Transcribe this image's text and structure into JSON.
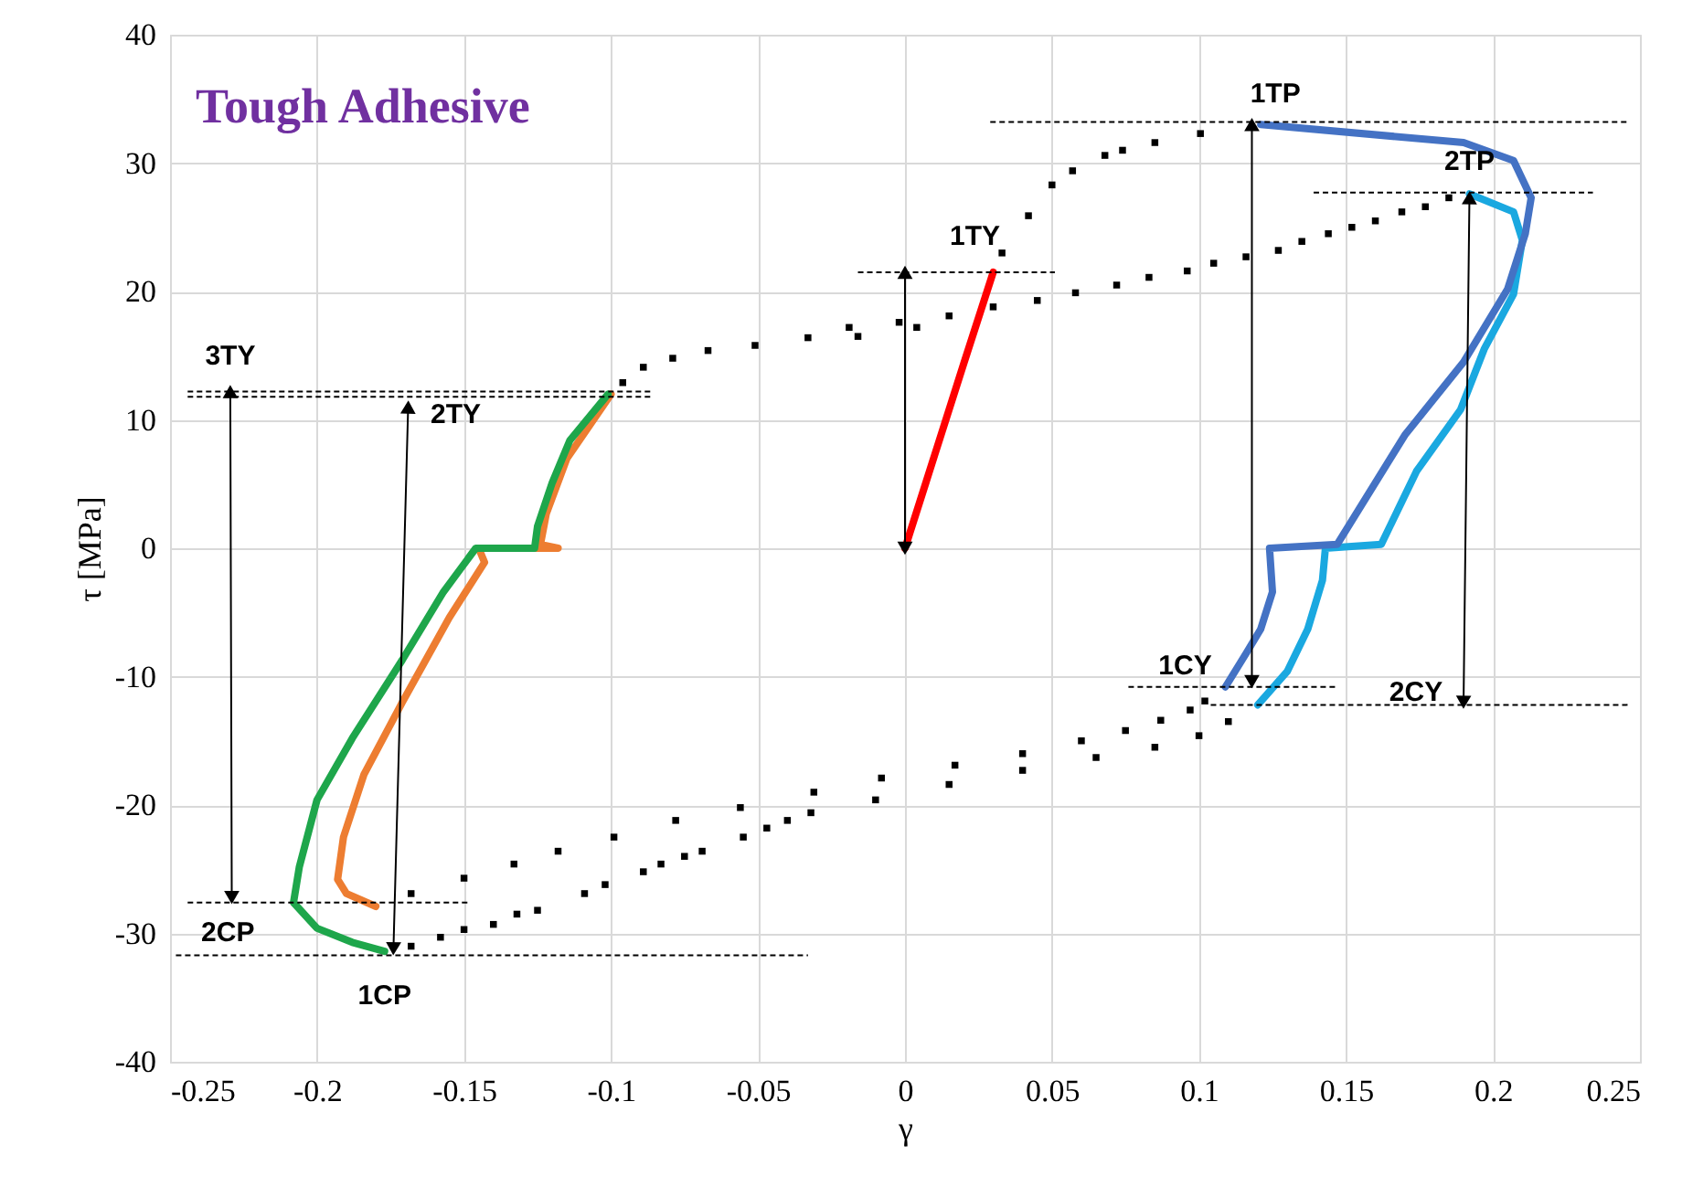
{
  "chart_data": {
    "type": "line",
    "title": "Tough Adhesive",
    "xlabel": "γ",
    "ylabel": "τ [MPa]",
    "xlim": [
      -0.25,
      0.25
    ],
    "xticks": [
      -0.25,
      -0.2,
      -0.15,
      -0.1,
      -0.05,
      0,
      0.05,
      0.1,
      0.15,
      0.2,
      0.25
    ],
    "ylim": [
      -40,
      40
    ],
    "yticks": [
      -40,
      -30,
      -20,
      -10,
      0,
      10,
      20,
      30,
      40
    ],
    "grid": true,
    "series": [
      {
        "type": "scatter",
        "marker": "square",
        "color": "#000000",
        "x": [
          0.033,
          0.042,
          0.05,
          0.057,
          0.068,
          0.074,
          0.085,
          0.1005
        ],
        "values": [
          23,
          25.9,
          28.3,
          29.4,
          30.6,
          31.0,
          31.6,
          32.3
        ]
      },
      {
        "type": "scatter",
        "marker": "square",
        "color": "#000000",
        "x": [
          0.185,
          0.177,
          0.169,
          0.16,
          0.152,
          0.144,
          0.135,
          0.127,
          0.116,
          0.105,
          0.096,
          0.083,
          0.072,
          0.058,
          0.045,
          0.03,
          0.015,
          0.004,
          -0.002,
          -0.016,
          -0.019,
          -0.033,
          -0.051,
          -0.067,
          -0.079,
          -0.089,
          -0.096
        ],
        "values": [
          27.3,
          26.6,
          26.2,
          25.5,
          25.0,
          24.5,
          23.9,
          23.2,
          22.7,
          22.2,
          21.6,
          21.1,
          20.5,
          19.9,
          19.3,
          18.8,
          18.1,
          17.2,
          17.6,
          16.5,
          17.2,
          16.4,
          15.8,
          15.4,
          14.8,
          14.1,
          12.9
        ]
      },
      {
        "type": "scatter",
        "marker": "square",
        "color": "#000000",
        "x": [
          -0.168,
          -0.15,
          -0.133,
          -0.118,
          -0.099,
          -0.078,
          -0.056,
          -0.031,
          -0.008,
          0.017,
          0.04,
          0.06,
          0.075,
          0.087,
          0.097,
          0.102
        ],
        "values": [
          -26.9,
          -25.7,
          -24.6,
          -23.6,
          -22.5,
          -21.2,
          -20.2,
          -19.0,
          -17.9,
          -16.9,
          -16.0,
          -15.0,
          -14.2,
          -13.4,
          -12.6,
          -11.9
        ]
      },
      {
        "type": "scatter",
        "marker": "square",
        "color": "#000000",
        "x": [
          -0.168,
          -0.158,
          -0.15,
          -0.14,
          -0.132,
          -0.125,
          -0.109,
          -0.102,
          -0.089,
          -0.083,
          -0.075,
          -0.069,
          -0.055,
          -0.047,
          -0.04,
          -0.032,
          -0.01,
          0.015,
          0.04,
          0.065,
          0.085,
          0.1,
          0.11
        ],
        "values": [
          -31.0,
          -30.3,
          -29.7,
          -29.3,
          -28.5,
          -28.2,
          -26.9,
          -26.2,
          -25.2,
          -24.6,
          -24.0,
          -23.6,
          -22.5,
          -21.8,
          -21.2,
          -20.6,
          -19.6,
          -18.4,
          -17.3,
          -16.3,
          -15.5,
          -14.6,
          -13.5
        ]
      },
      {
        "color": "#ff0000",
        "x": [
          0,
          0.01,
          0.02,
          0.03
        ],
        "values": [
          0,
          7.2,
          14.4,
          21.5
        ]
      },
      {
        "color": "#1aa8e0",
        "x": [
          0.192,
          0.207,
          0.21,
          0.207,
          0.197,
          0.189,
          0.174,
          0.162,
          0.143,
          0.142,
          0.137,
          0.13,
          0.12
        ],
        "values": [
          27.6,
          26.2,
          24.0,
          19.8,
          15.5,
          10.8,
          6.0,
          0.3,
          0,
          -2.5,
          -6.3,
          -9.6,
          -12.2
        ]
      },
      {
        "color": "#4472c4",
        "x": [
          0.121,
          0.19,
          0.207,
          0.213,
          0.211,
          0.205,
          0.19,
          0.17,
          0.147,
          0.124,
          0.125,
          0.121,
          0.116,
          0.109
        ],
        "values": [
          33.0,
          31.6,
          30.2,
          27.3,
          24.5,
          20.2,
          14.5,
          8.8,
          0.3,
          0,
          -3.4,
          -6.3,
          -8.2,
          -10.8
        ]
      },
      {
        "color": "#ed7d31",
        "x": [
          -0.1,
          -0.115,
          -0.122,
          -0.124,
          -0.118,
          -0.145,
          -0.143,
          -0.155,
          -0.171,
          -0.184,
          -0.191,
          -0.193,
          -0.19,
          -0.18
        ],
        "values": [
          12.0,
          7.0,
          2.7,
          0.3,
          0,
          0,
          -1.1,
          -5.4,
          -12.0,
          -17.6,
          -22.5,
          -25.8,
          -26.9,
          -27.9
        ]
      },
      {
        "color": "#1ea64b",
        "x": [
          -0.101,
          -0.114,
          -0.12,
          -0.125,
          -0.126,
          -0.146,
          -0.157,
          -0.171,
          -0.188,
          -0.2,
          -0.206,
          -0.208,
          -0.2,
          -0.188,
          -0.177
        ],
        "values": [
          12.0,
          8.4,
          5.1,
          1.7,
          0,
          0,
          -3.4,
          -8.7,
          -14.8,
          -19.6,
          -24.8,
          -27.6,
          -29.6,
          -30.7,
          -31.4
        ]
      },
      {
        "type": "line",
        "line_style": "dashed",
        "color": "#000000",
        "x": [
          0.029,
          0.246
        ],
        "values": [
          33.2,
          33.2
        ]
      },
      {
        "type": "line",
        "line_style": "dashed",
        "color": "#000000",
        "x": [
          0.139,
          0.234
        ],
        "values": [
          27.7,
          27.7
        ]
      },
      {
        "type": "line",
        "line_style": "dashed",
        "color": "#000000",
        "x": [
          -0.016,
          0.051
        ],
        "values": [
          21.5,
          21.5
        ]
      },
      {
        "type": "line",
        "line_style": "dashed",
        "color": "#000000",
        "x": [
          -0.244,
          -0.086
        ],
        "values": [
          12.2,
          12.2
        ]
      },
      {
        "type": "line",
        "line_style": "dashed",
        "color": "#000000",
        "x": [
          -0.244,
          -0.086
        ],
        "values": [
          11.8,
          11.8
        ]
      },
      {
        "type": "line",
        "line_style": "dashed",
        "color": "#000000",
        "x": [
          -0.244,
          -0.148
        ],
        "values": [
          -27.6,
          -27.6
        ]
      },
      {
        "type": "line",
        "line_style": "dashed",
        "color": "#000000",
        "x": [
          -0.248,
          -0.033
        ],
        "values": [
          -31.7,
          -31.7
        ]
      },
      {
        "type": "line",
        "line_style": "dashed",
        "color": "#000000",
        "x": [
          0.076,
          0.147
        ],
        "values": [
          -10.8,
          -10.8
        ]
      },
      {
        "type": "line",
        "line_style": "dashed",
        "color": "#000000",
        "x": [
          0.104,
          0.246
        ],
        "values": [
          -12.2,
          -12.2
        ]
      },
      {
        "type": "line",
        "marker": "triangle",
        "color": "#000000",
        "x": [
          -0.2295,
          -0.229
        ],
        "values": [
          12.2,
          -27.2
        ]
      },
      {
        "type": "line",
        "marker": "triangle",
        "color": "#000000",
        "x": [
          -0.169,
          -0.174
        ],
        "values": [
          11.0,
          -31.2
        ]
      },
      {
        "type": "line",
        "marker": "triangle",
        "color": "#000000",
        "x": [
          0,
          0
        ],
        "values": [
          0,
          21.5
        ]
      },
      {
        "type": "line",
        "marker": "triangle",
        "color": "#000000",
        "x": [
          0.118,
          0.118
        ],
        "values": [
          33.0,
          -10.4
        ]
      },
      {
        "type": "line",
        "marker": "triangle",
        "color": "#000000",
        "x": [
          0.192,
          0.19
        ],
        "values": [
          27.3,
          -12.0
        ]
      }
    ],
    "annotations": [
      {
        "text": "1TP",
        "x": 0.121,
        "y": 33.0
      },
      {
        "text": "2TP",
        "x": 0.192,
        "y": 27.6
      },
      {
        "text": "1TY",
        "x": 0.03,
        "y": 21.5
      },
      {
        "text": "3TY",
        "x": -0.2295,
        "y": 12.2
      },
      {
        "text": "2TY",
        "x": -0.169,
        "y": 11.0
      },
      {
        "text": "2CP",
        "x": -0.244,
        "y": -27.6
      },
      {
        "text": "1CP",
        "x": -0.177,
        "y": -31.4
      },
      {
        "text": "1CY",
        "x": 0.109,
        "y": -10.8
      },
      {
        "text": "2CY",
        "x": 0.19,
        "y": -12.0
      }
    ]
  }
}
